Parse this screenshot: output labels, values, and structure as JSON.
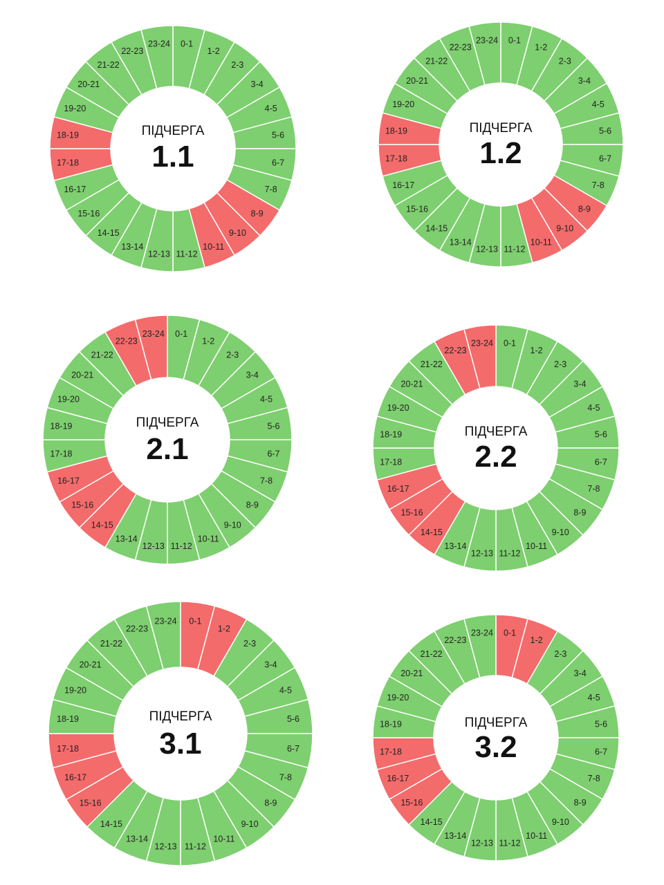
{
  "colors": {
    "on": "#7ecf6f",
    "off": "#f46b6b",
    "separator": "#ffffff"
  },
  "chart_data": [
    {
      "type": "pie",
      "title_label": "ПІДЧЕРГА",
      "title_number": "1.1",
      "categories": [
        "0-1",
        "1-2",
        "2-3",
        "3-4",
        "4-5",
        "5-6",
        "6-7",
        "7-8",
        "8-9",
        "9-10",
        "10-11",
        "11-12",
        "12-13",
        "13-14",
        "14-15",
        "15-16",
        "16-17",
        "17-18",
        "18-19",
        "19-20",
        "20-21",
        "21-22",
        "22-23",
        "23-24"
      ],
      "outage_hours": [
        "8-9",
        "9-10",
        "10-11",
        "17-18",
        "18-19"
      ]
    },
    {
      "type": "pie",
      "title_label": "ПІДЧЕРГА",
      "title_number": "1.2",
      "categories": [
        "0-1",
        "1-2",
        "2-3",
        "3-4",
        "4-5",
        "5-6",
        "6-7",
        "7-8",
        "8-9",
        "9-10",
        "10-11",
        "11-12",
        "12-13",
        "13-14",
        "14-15",
        "15-16",
        "16-17",
        "17-18",
        "18-19",
        "19-20",
        "20-21",
        "21-22",
        "22-23",
        "23-24"
      ],
      "outage_hours": [
        "8-9",
        "9-10",
        "10-11",
        "17-18",
        "18-19"
      ]
    },
    {
      "type": "pie",
      "title_label": "ПІДЧЕРГА",
      "title_number": "2.1",
      "categories": [
        "0-1",
        "1-2",
        "2-3",
        "3-4",
        "4-5",
        "5-6",
        "6-7",
        "7-8",
        "8-9",
        "9-10",
        "10-11",
        "11-12",
        "12-13",
        "13-14",
        "14-15",
        "15-16",
        "16-17",
        "17-18",
        "18-19",
        "19-20",
        "20-21",
        "21-22",
        "22-23",
        "23-24"
      ],
      "outage_hours": [
        "14-15",
        "15-16",
        "16-17",
        "22-23",
        "23-24"
      ]
    },
    {
      "type": "pie",
      "title_label": "ПІДЧЕРГА",
      "title_number": "2.2",
      "categories": [
        "0-1",
        "1-2",
        "2-3",
        "3-4",
        "4-5",
        "5-6",
        "6-7",
        "7-8",
        "8-9",
        "9-10",
        "10-11",
        "11-12",
        "12-13",
        "13-14",
        "14-15",
        "15-16",
        "16-17",
        "17-18",
        "18-19",
        "19-20",
        "20-21",
        "21-22",
        "22-23",
        "23-24"
      ],
      "outage_hours": [
        "14-15",
        "15-16",
        "16-17",
        "22-23",
        "23-24"
      ]
    },
    {
      "type": "pie",
      "title_label": "ПІДЧЕРГА",
      "title_number": "3.1",
      "categories": [
        "0-1",
        "1-2",
        "2-3",
        "3-4",
        "4-5",
        "5-6",
        "6-7",
        "7-8",
        "8-9",
        "9-10",
        "10-11",
        "11-12",
        "12-13",
        "13-14",
        "14-15",
        "15-16",
        "16-17",
        "17-18",
        "18-19",
        "19-20",
        "20-21",
        "21-22",
        "22-23",
        "23-24"
      ],
      "outage_hours": [
        "0-1",
        "1-2",
        "15-16",
        "16-17",
        "17-18"
      ]
    },
    {
      "type": "pie",
      "title_label": "ПІДЧЕРГА",
      "title_number": "3.2",
      "categories": [
        "0-1",
        "1-2",
        "2-3",
        "3-4",
        "4-5",
        "5-6",
        "6-7",
        "7-8",
        "8-9",
        "9-10",
        "10-11",
        "11-12",
        "12-13",
        "13-14",
        "14-15",
        "15-16",
        "16-17",
        "17-18",
        "18-19",
        "19-20",
        "20-21",
        "21-22",
        "22-23",
        "23-24"
      ],
      "outage_hours": [
        "0-1",
        "1-2",
        "15-16",
        "16-17",
        "17-18"
      ]
    }
  ]
}
